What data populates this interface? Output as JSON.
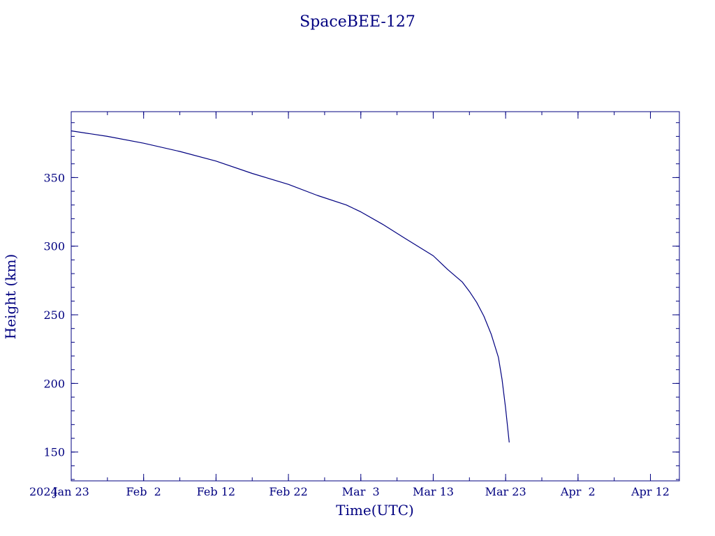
{
  "chart_data": {
    "type": "line",
    "title": "SpaceBEE-127",
    "xlabel": "Time(UTC)",
    "ylabel": "Height (km)",
    "year_label": "2024",
    "x_ticks": [
      {
        "date": "2024-01-23",
        "label": "Jan 23"
      },
      {
        "date": "2024-02-02",
        "label": "Feb  2"
      },
      {
        "date": "2024-02-12",
        "label": "Feb 12"
      },
      {
        "date": "2024-02-22",
        "label": "Feb 22"
      },
      {
        "date": "2024-03-03",
        "label": "Mar  3"
      },
      {
        "date": "2024-03-13",
        "label": "Mar 13"
      },
      {
        "date": "2024-03-23",
        "label": "Mar 23"
      },
      {
        "date": "2024-04-02",
        "label": "Apr  2"
      },
      {
        "date": "2024-04-12",
        "label": "Apr 12"
      }
    ],
    "y_ticks": [
      150,
      200,
      250,
      300,
      350
    ],
    "xlim": [
      "2024-01-23",
      "2024-04-16"
    ],
    "ylim": [
      129,
      398
    ],
    "grid": false,
    "series": [
      {
        "color": "#000080",
        "x": [
          "2024-01-23",
          "2024-01-28",
          "2024-02-02",
          "2024-02-07",
          "2024-02-12",
          "2024-02-17",
          "2024-02-22",
          "2024-02-26",
          "2024-03-01",
          "2024-03-03",
          "2024-03-06",
          "2024-03-09",
          "2024-03-13",
          "2024-03-15",
          "2024-03-17",
          "2024-03-18",
          "2024-03-19",
          "2024-03-20",
          "2024-03-21",
          "2024-03-22",
          "2024-03-22T12:00",
          "2024-03-23",
          "2024-03-23T12:00"
        ],
        "y": [
          384,
          380,
          375,
          369,
          362,
          353,
          345,
          337,
          330,
          325,
          316,
          306,
          293,
          283,
          274,
          267,
          259,
          249,
          236,
          219,
          203,
          182,
          157
        ]
      }
    ]
  }
}
